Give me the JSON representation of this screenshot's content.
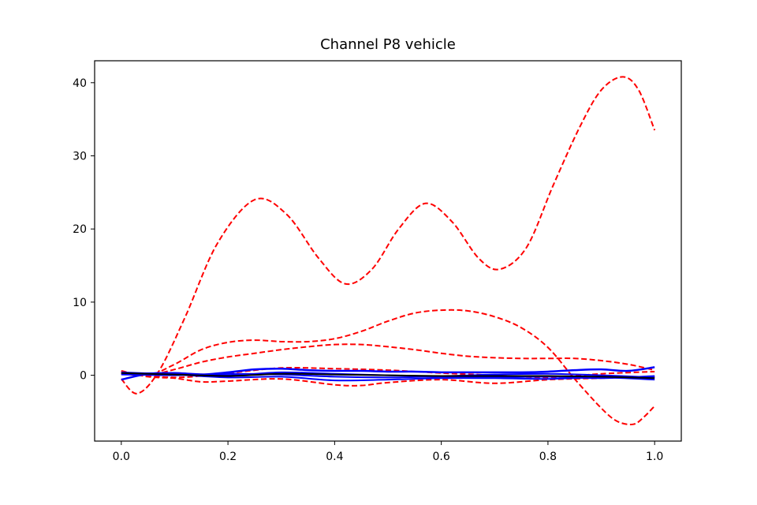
{
  "chart_data": {
    "type": "line",
    "title": "Channel P8 vehicle",
    "xlabel": "",
    "ylabel": "",
    "xlim": [
      -0.05,
      1.05
    ],
    "ylim": [
      -9,
      43
    ],
    "x_ticks": [
      0.0,
      0.2,
      0.4,
      0.6,
      0.8,
      1.0
    ],
    "x_tick_labels": [
      "0.0",
      "0.2",
      "0.4",
      "0.6",
      "0.8",
      "1.0"
    ],
    "y_ticks": [
      0,
      10,
      20,
      30,
      40
    ],
    "y_tick_labels": [
      "0",
      "10",
      "20",
      "30",
      "40"
    ],
    "grid": false,
    "legend": "none",
    "series": [
      {
        "color": "#ff0000",
        "style": "dashed",
        "width": 2,
        "x": [
          0.0,
          0.03,
          0.07,
          0.12,
          0.18,
          0.25,
          0.31,
          0.37,
          0.42,
          0.47,
          0.52,
          0.57,
          0.62,
          0.67,
          0.71,
          0.76,
          0.81,
          0.86,
          0.9,
          0.94,
          0.97,
          1.0
        ],
        "y": [
          -0.5,
          -2.5,
          0.5,
          8,
          18,
          24,
          22,
          16,
          12.5,
          14.5,
          20,
          23.5,
          21,
          16,
          14.5,
          17.5,
          26,
          34,
          39,
          40.8,
          39,
          33.5
        ]
      },
      {
        "color": "#ff0000",
        "style": "dashed",
        "width": 2,
        "x": [
          0.0,
          0.05,
          0.1,
          0.15,
          0.2,
          0.25,
          0.3,
          0.35,
          0.4,
          0.45,
          0.5,
          0.55,
          0.6,
          0.65,
          0.7,
          0.75,
          0.8,
          0.85,
          0.9,
          0.93,
          0.96,
          0.98,
          1.0
        ],
        "y": [
          0.5,
          0.0,
          1.5,
          3.5,
          4.5,
          4.8,
          4.6,
          4.6,
          5.0,
          6.0,
          7.4,
          8.5,
          8.9,
          8.8,
          8.0,
          6.5,
          3.8,
          -0.5,
          -4.5,
          -6.3,
          -6.7,
          -5.7,
          -4.2
        ]
      },
      {
        "color": "#ff0000",
        "style": "dashed",
        "width": 2,
        "x": [
          0.0,
          0.05,
          0.1,
          0.15,
          0.2,
          0.25,
          0.3,
          0.35,
          0.4,
          0.45,
          0.5,
          0.55,
          0.6,
          0.65,
          0.7,
          0.75,
          0.8,
          0.85,
          0.9,
          0.95,
          1.0
        ],
        "y": [
          0.2,
          0.0,
          0.8,
          1.8,
          2.5,
          3.0,
          3.5,
          3.9,
          4.2,
          4.2,
          3.9,
          3.5,
          3.0,
          2.6,
          2.4,
          2.3,
          2.3,
          2.3,
          2.0,
          1.5,
          0.7
        ]
      },
      {
        "color": "#ff0000",
        "style": "dashed",
        "width": 2,
        "x": [
          0.0,
          0.1,
          0.2,
          0.3,
          0.4,
          0.5,
          0.6,
          0.7,
          0.8,
          0.9,
          1.0
        ],
        "y": [
          0.3,
          -0.3,
          0.3,
          1.0,
          0.9,
          0.7,
          0.3,
          0.0,
          -0.3,
          0.2,
          0.5
        ]
      },
      {
        "color": "#ff0000",
        "style": "dashed",
        "width": 2,
        "x": [
          0.0,
          0.05,
          0.1,
          0.15,
          0.2,
          0.3,
          0.4,
          0.45,
          0.5,
          0.6,
          0.7,
          0.8,
          0.9,
          1.0
        ],
        "y": [
          0.6,
          -0.2,
          -0.4,
          -0.9,
          -0.8,
          -0.5,
          -1.3,
          -1.4,
          -1.0,
          -0.6,
          -1.1,
          -0.6,
          -0.4,
          -0.2
        ]
      },
      {
        "color": "#0000ff",
        "style": "solid",
        "width": 2.5,
        "x": [
          0.0,
          0.05,
          0.1,
          0.15,
          0.2,
          0.25,
          0.3,
          0.35,
          0.4,
          0.45,
          0.5,
          0.55,
          0.6,
          0.65,
          0.7,
          0.75,
          0.8,
          0.85,
          0.9,
          0.95,
          1.0
        ],
        "y": [
          -0.6,
          0.2,
          0.3,
          0.1,
          0.4,
          0.8,
          0.9,
          0.7,
          0.6,
          0.6,
          0.5,
          0.5,
          0.4,
          0.4,
          0.4,
          0.4,
          0.5,
          0.7,
          0.8,
          0.6,
          1.1
        ]
      },
      {
        "color": "#0000ff",
        "style": "solid",
        "width": 2,
        "x": [
          0.0,
          0.1,
          0.2,
          0.3,
          0.4,
          0.5,
          0.6,
          0.7,
          0.8,
          0.9,
          1.0
        ],
        "y": [
          0.4,
          0.1,
          -0.3,
          -0.2,
          -0.7,
          -0.6,
          -0.4,
          -0.4,
          -0.5,
          -0.3,
          -0.6
        ]
      },
      {
        "color": "#0000ff",
        "style": "solid",
        "width": 2,
        "x": [
          0.0,
          0.1,
          0.2,
          0.3,
          0.4,
          0.5,
          0.6,
          0.7,
          0.8,
          0.9,
          1.0
        ],
        "y": [
          0.2,
          0.3,
          0.0,
          0.4,
          0.2,
          0.0,
          -0.1,
          0.1,
          0.2,
          0.0,
          -0.3
        ]
      },
      {
        "color": "#0000ff",
        "style": "solid",
        "width": 2,
        "x": [
          0.0,
          0.1,
          0.2,
          0.3,
          0.4,
          0.5,
          0.6,
          0.7,
          0.8,
          0.9,
          1.0
        ],
        "y": [
          0.1,
          0.0,
          0.2,
          0.1,
          -0.2,
          -0.3,
          -0.2,
          -0.3,
          -0.2,
          -0.4,
          -0.1
        ]
      },
      {
        "color": "#000000",
        "style": "solid",
        "width": 2,
        "x": [
          0.0,
          0.1,
          0.2,
          0.3,
          0.4,
          0.5,
          0.6,
          0.7,
          0.8,
          0.9,
          1.0
        ],
        "y": [
          0.3,
          0.1,
          -0.1,
          0.2,
          0.1,
          0.0,
          -0.1,
          -0.1,
          -0.1,
          -0.2,
          -0.4
        ]
      }
    ]
  }
}
